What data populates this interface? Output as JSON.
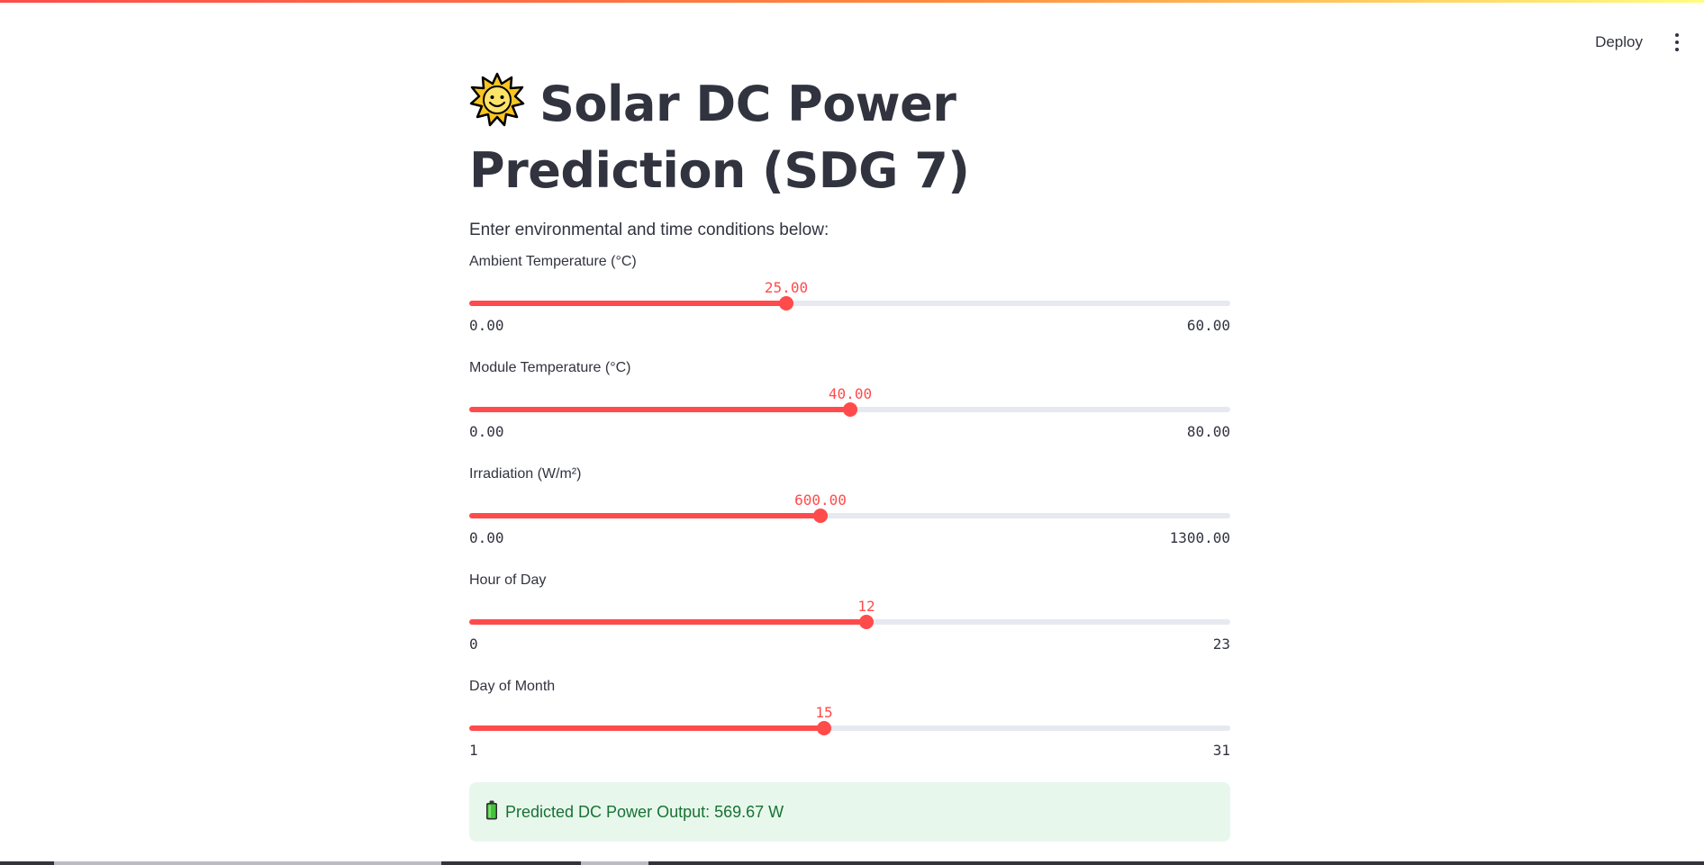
{
  "toolbar": {
    "deploy_label": "Deploy"
  },
  "header": {
    "title": "Solar DC Power Prediction (SDG 7)",
    "subtitle": "Enter environmental and time conditions below:"
  },
  "sliders": [
    {
      "label": "Ambient Temperature (°C)",
      "value": "25.00",
      "min": "0.00",
      "max": "60.00",
      "fraction": 0.4167
    },
    {
      "label": "Module Temperature (°C)",
      "value": "40.00",
      "min": "0.00",
      "max": "80.00",
      "fraction": 0.5
    },
    {
      "label": "Irradiation (W/m²)",
      "value": "600.00",
      "min": "0.00",
      "max": "1300.00",
      "fraction": 0.4615
    },
    {
      "label": "Hour of Day",
      "value": "12",
      "min": "0",
      "max": "23",
      "fraction": 0.5217
    },
    {
      "label": "Day of Month",
      "value": "15",
      "min": "1",
      "max": "31",
      "fraction": 0.4667
    }
  ],
  "result": {
    "text": "Predicted DC Power Output: 569.67 W",
    "icon": "battery-icon"
  },
  "colors": {
    "accent": "#ff4b4b",
    "text": "#31333f",
    "success_bg": "#e8f7ec",
    "success_text": "#177233",
    "track": "#e6e9ef"
  },
  "icons": {
    "title_icon": "sun-icon",
    "menu_icon": "kebab-menu-icon"
  }
}
